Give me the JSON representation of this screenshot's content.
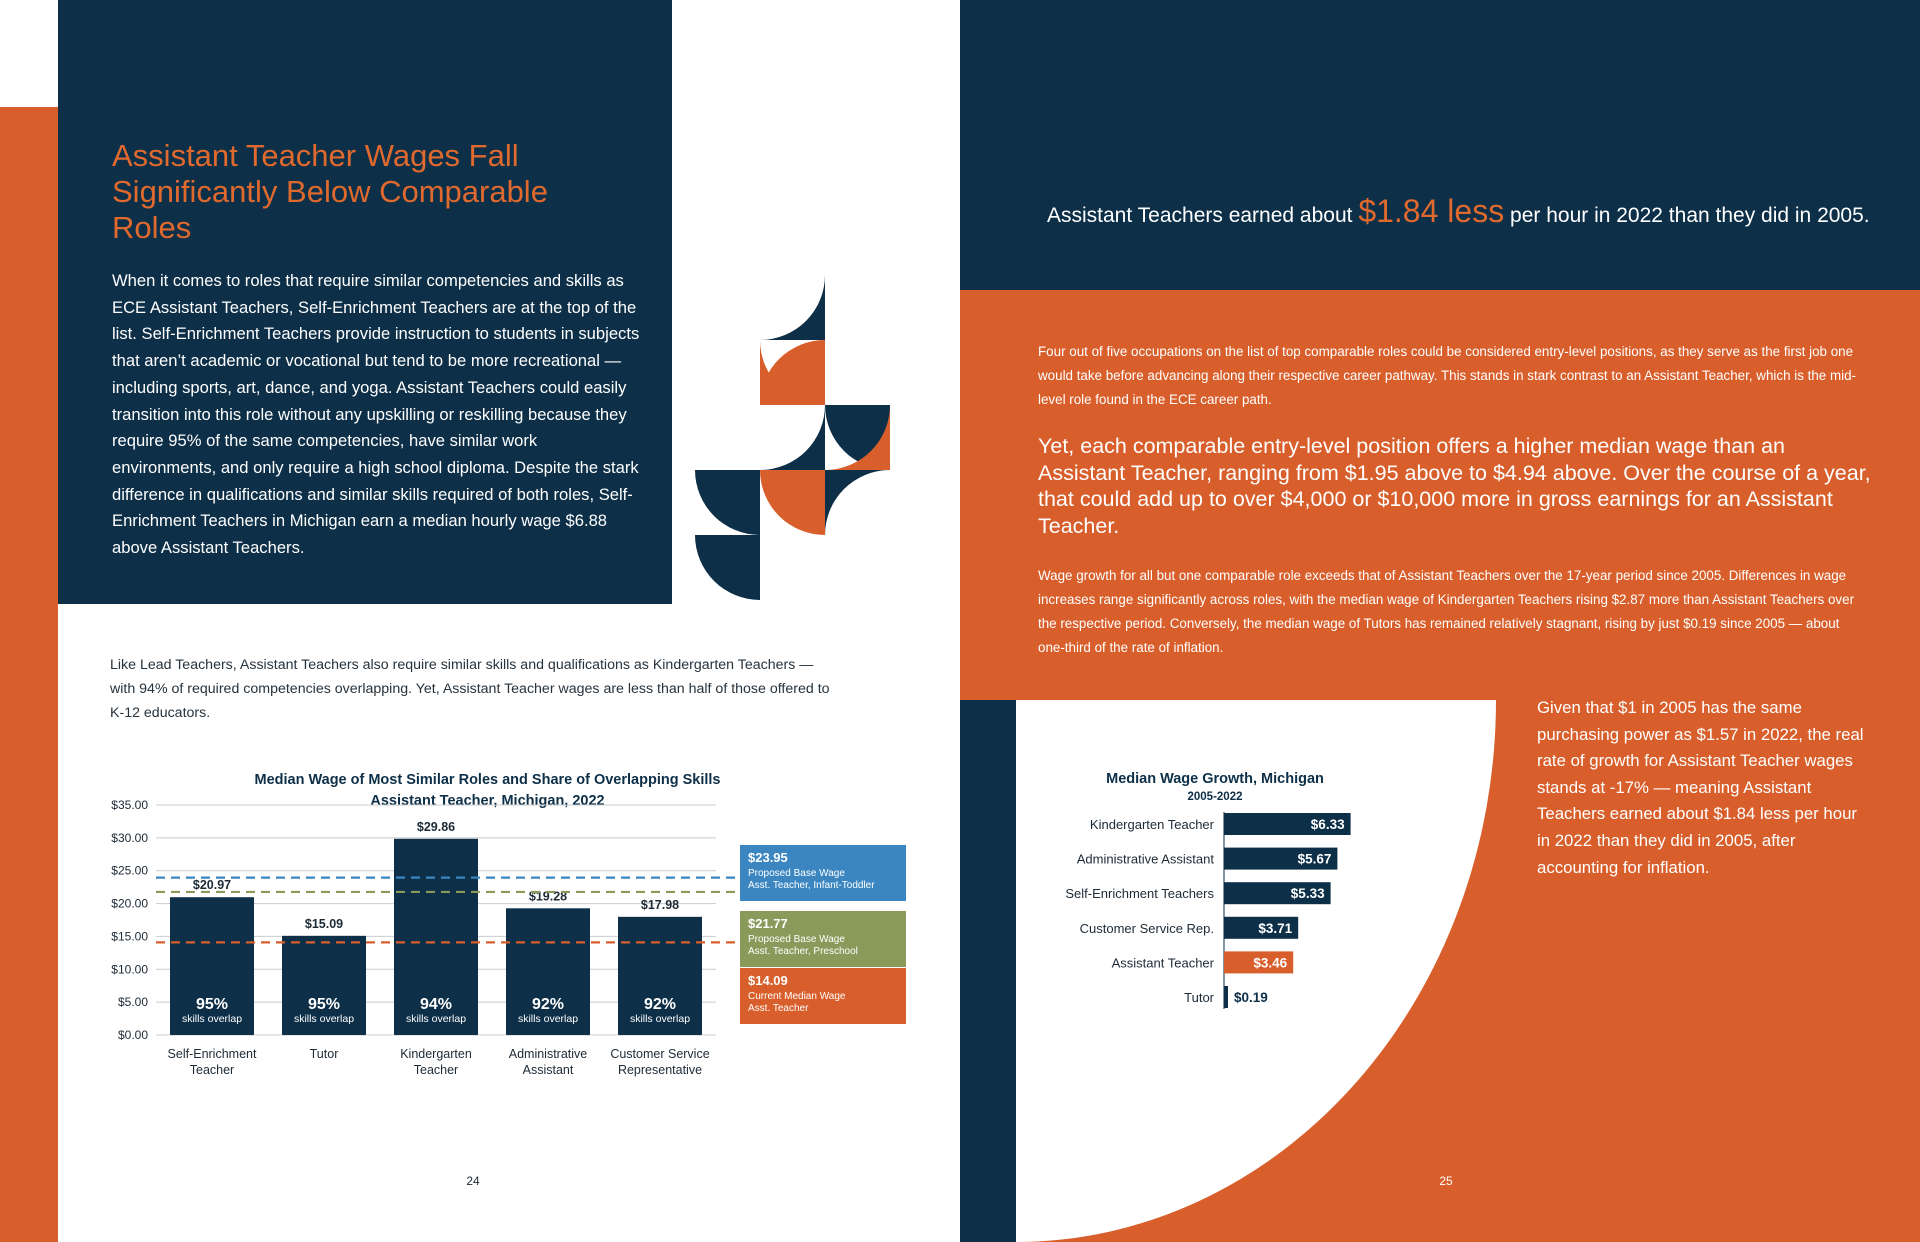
{
  "left_page": {
    "title": "Assistant Teacher Wages Fall Significantly Below Comparable Roles",
    "body": "When it comes to roles that require similar competencies and skills as ECE Assistant Teachers, Self-Enrichment Teachers are at the top of the list. Self-Enrichment Teachers provide instruction to students in subjects that aren’t academic or vocational but tend to be more recreational — including sports, art, dance, and yoga. Assistant Teachers could easily transition into this role without any upskilling or reskilling because they require 95% of the same competencies, have similar work environments, and only require a high school diploma. Despite the stark difference in qualifications and similar skills required of both roles, Self-Enrichment Teachers in Michigan earn a median hourly wage $6.88 above Assistant Teachers.",
    "intro": "Like Lead Teachers, Assistant Teachers also require similar skills and qualifications as Kindergarten Teachers — with 94% of required competencies overlapping. Yet, Assistant Teacher wages are less than half of those offered to K-12 educators.",
    "page_number": "24"
  },
  "right_page": {
    "headline_pre": "Assistant Teachers earned about ",
    "headline_highlight": "$1.84 less",
    "headline_post": " per hour in 2022 than they did in 2005.",
    "p1": "Four out of five occupations on the list of top comparable roles could be considered entry-level positions, as they serve as the first job one would take before advancing along their respective career pathway. This stands in stark contrast to an Assistant Teacher, which is the mid-level role found in the ECE career path.",
    "p2": "Yet, each comparable entry-level position offers a higher median wage than an Assistant Teacher, ranging from $1.95 above to $4.94 above. Over the course of a year, that could add up to over $4,000 or $10,000 more in gross earnings for an Assistant Teacher.",
    "p3": "Wage growth for all but one comparable role exceeds that of Assistant Teachers over the 17-year period since 2005. Differences in wage increases range significantly across roles, with the median wage of Kindergarten Teachers rising $2.87 more than Assistant Teachers over the respective period. Conversely, the median wage of Tutors has remained relatively stagnant, rising by just $0.19 since 2005 — about one-third of the rate of inflation.",
    "side": "Given that $1 in 2005 has the same purchasing power as $1.57 in 2022, the real rate of growth for Assistant Teacher wages stands at -17% — meaning Assistant Teachers earned about $1.84 less per hour in 2022 than they did in 2005, after accounting for inflation.",
    "page_number": "25"
  },
  "colors": {
    "navy": "#0d2f48",
    "orange": "#d85f2b",
    "blue": "#3b86c0",
    "olive": "#8a9a5b"
  },
  "chart_data": [
    {
      "type": "bar",
      "title": "Median Wage of Most Similar Roles and Share of Overlapping Skills",
      "subtitle": "Assistant Teacher, Michigan, 2022",
      "categories": [
        "Self-Enrichment Teacher",
        "Tutor",
        "Kindergarten Teacher",
        "Administrative Assistant",
        "Customer Service Representative"
      ],
      "values": [
        20.97,
        15.09,
        29.86,
        19.28,
        17.98
      ],
      "value_labels": [
        "$20.97",
        "$15.09",
        "$29.86",
        "$19.28",
        "$17.98"
      ],
      "overlap": [
        "95%",
        "95%",
        "94%",
        "92%",
        "92%"
      ],
      "overlap_label": "skills overlap",
      "ylim": [
        0,
        35
      ],
      "yticks": [
        "$0.00",
        "$5.00",
        "$10.00",
        "$15.00",
        "$20.00",
        "$25.00",
        "$30.00",
        "$35.00"
      ],
      "reference_lines": [
        {
          "value": 23.95,
          "label": "$23.95",
          "desc1": "Proposed Base Wage",
          "desc2": "Asst. Teacher, Infant-Toddler",
          "color": "#3b86c0"
        },
        {
          "value": 21.77,
          "label": "$21.77",
          "desc1": "Proposed Base Wage",
          "desc2": "Asst. Teacher, Preschool",
          "color": "#8a9a5b"
        },
        {
          "value": 14.09,
          "label": "$14.09",
          "desc1": "Current Median Wage",
          "desc2": "Asst. Teacher",
          "color": "#d85f2b"
        }
      ],
      "legend_position": "right",
      "grid": true
    },
    {
      "type": "bar",
      "orientation": "horizontal",
      "title": "Median Wage Growth, Michigan",
      "subtitle": "2005-2022",
      "categories": [
        "Kindergarten Teacher",
        "Administrative Assistant",
        "Self-Enrichment Teachers",
        "Customer Service Rep.",
        "Assistant Teacher",
        "Tutor"
      ],
      "values": [
        6.33,
        5.67,
        5.33,
        3.71,
        3.46,
        0.19
      ],
      "value_labels": [
        "$6.33",
        "$5.67",
        "$5.33",
        "$3.71",
        "$3.46",
        "$0.19"
      ],
      "highlight": "Assistant Teacher",
      "grid": false
    }
  ]
}
